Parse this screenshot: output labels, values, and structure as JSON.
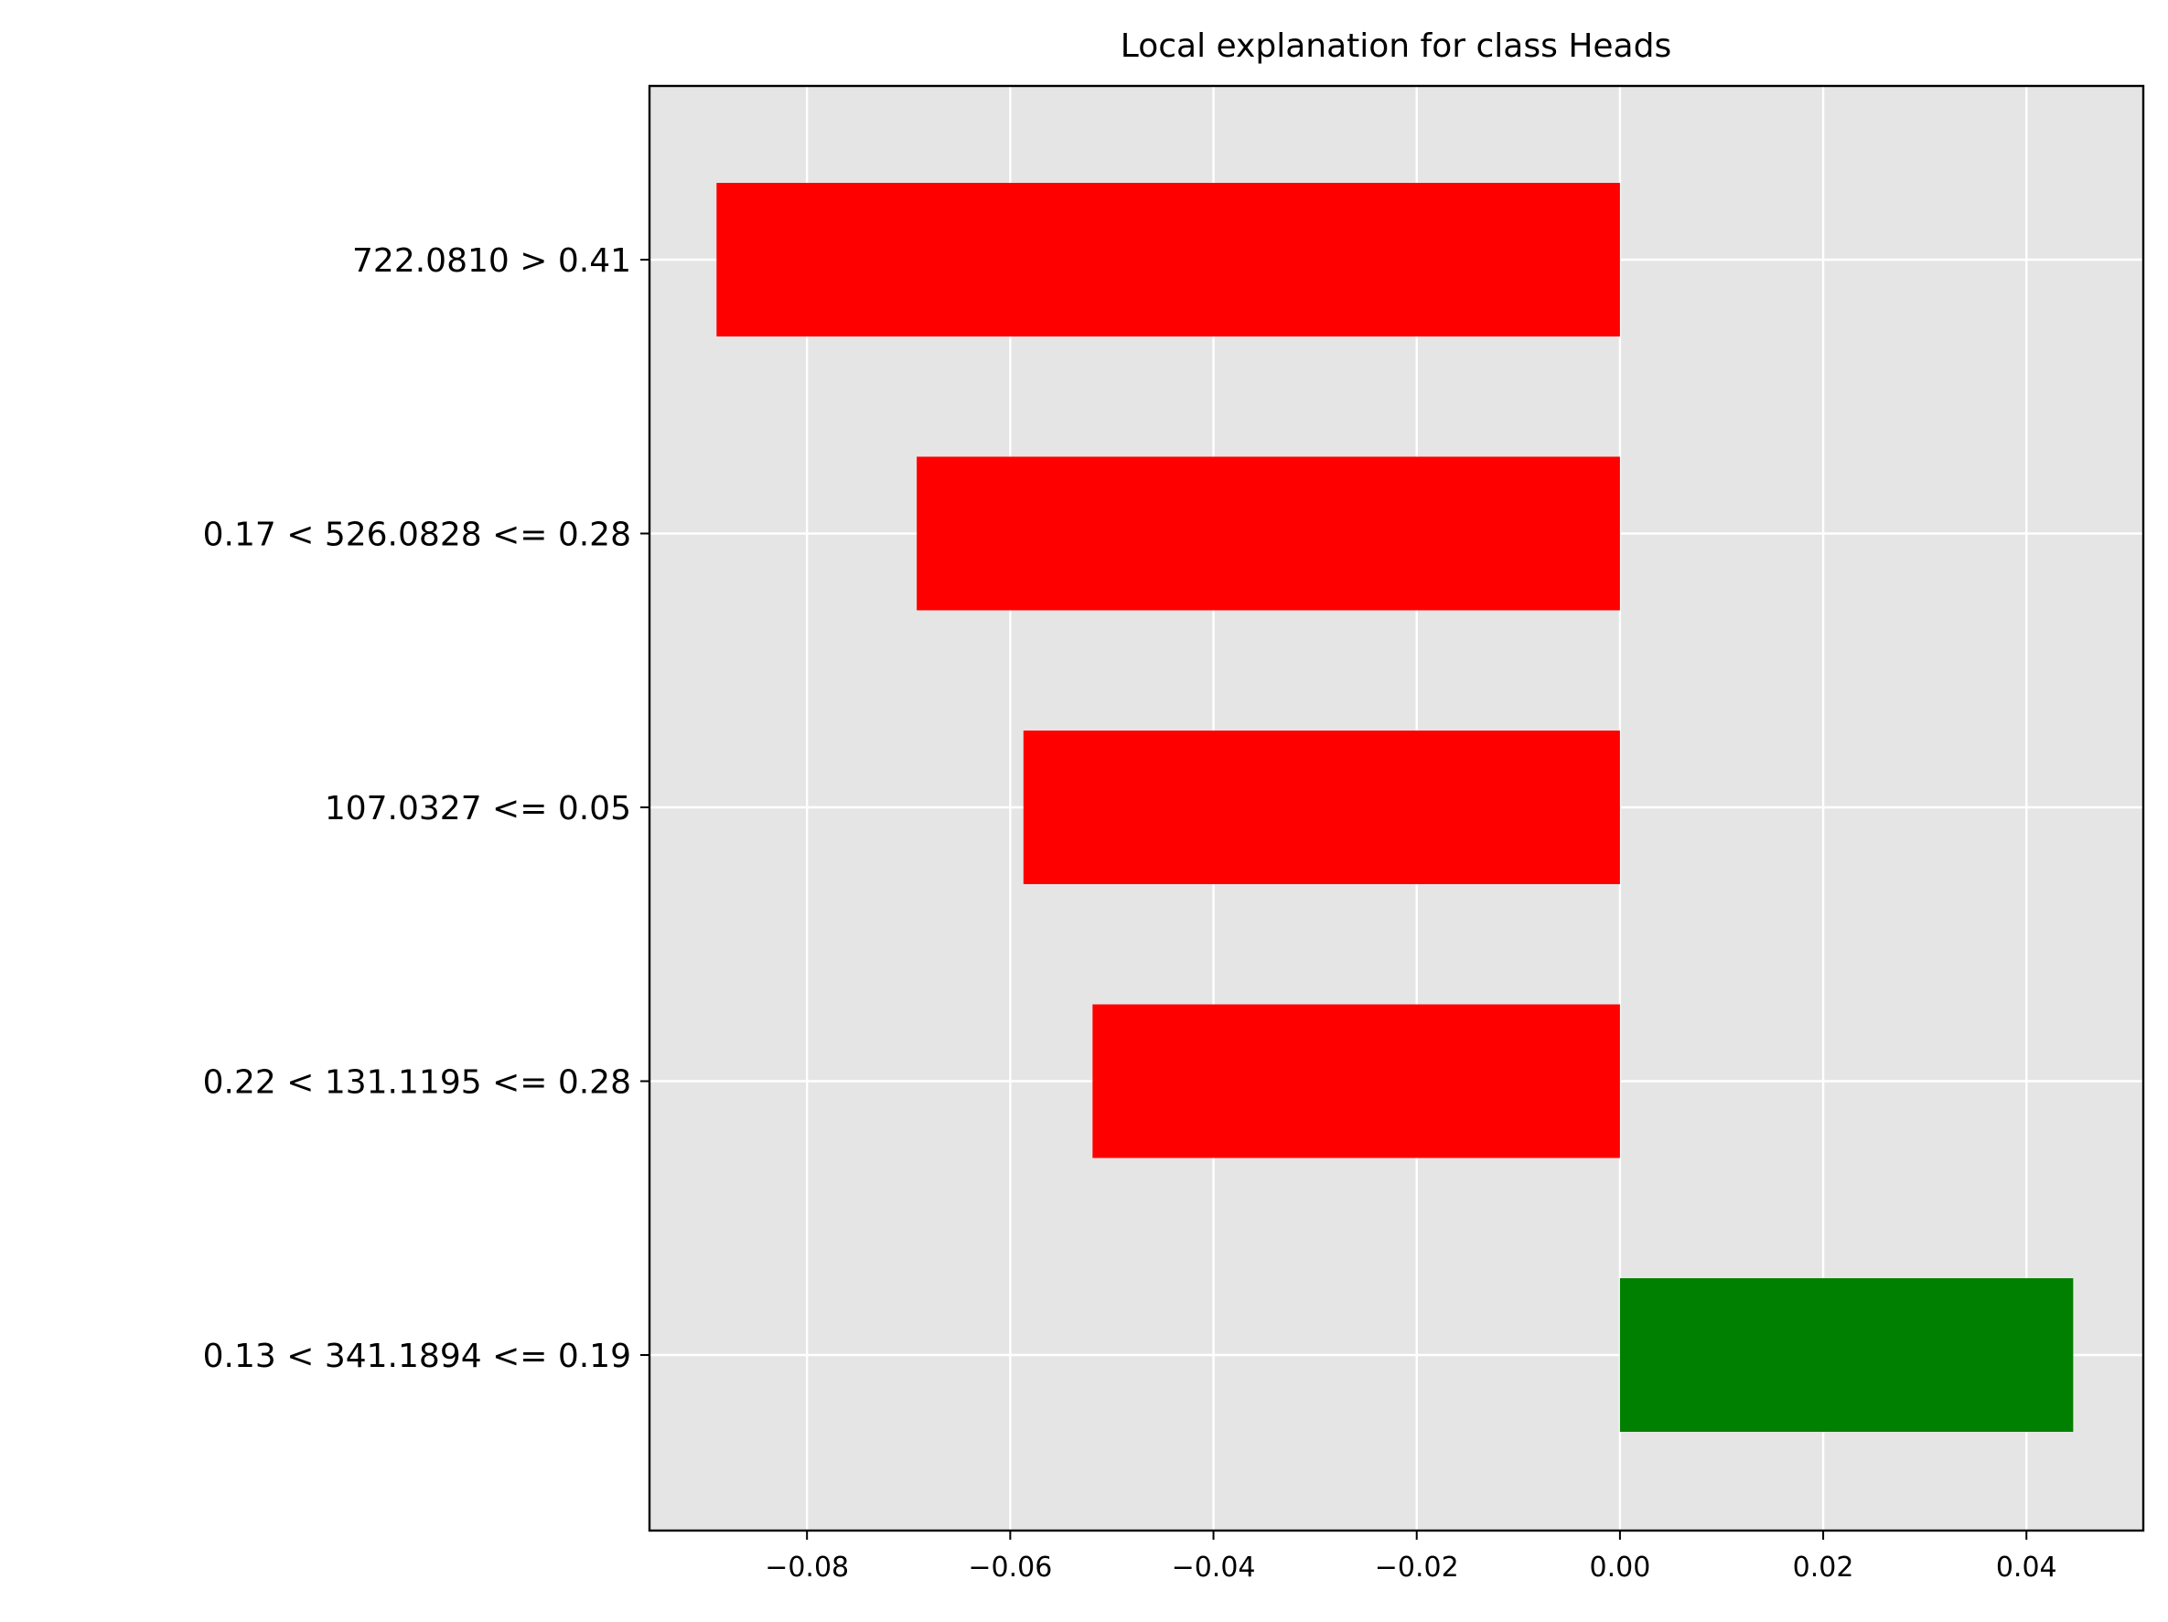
{
  "chart_data": {
    "type": "bar",
    "orientation": "horizontal",
    "title": "Local explanation for class Heads",
    "xlabel": "",
    "ylabel": "",
    "categories": [
      "722.0810 > 0.41",
      "0.17 < 526.0828 <= 0.28",
      "107.0327 <= 0.05",
      "0.22 < 131.1195 <= 0.28",
      "0.13 < 341.1894 <= 0.19"
    ],
    "values": [
      -0.0889,
      -0.0692,
      -0.0587,
      -0.0519,
      0.0446
    ],
    "bar_colors": [
      "#ff0000",
      "#ff0000",
      "#ff0000",
      "#ff0000",
      "#008000"
    ],
    "xlim": [
      -0.0955,
      0.0515
    ],
    "xticks": [
      -0.08,
      -0.06,
      -0.04,
      -0.02,
      0.0,
      0.02,
      0.04
    ],
    "xtick_labels": [
      "−0.08",
      "−0.06",
      "−0.04",
      "−0.02",
      "0.00",
      "0.02",
      "0.04"
    ],
    "grid": true,
    "background_color": "#e5e5e5",
    "grid_color": "#ffffff",
    "legend": "none"
  }
}
